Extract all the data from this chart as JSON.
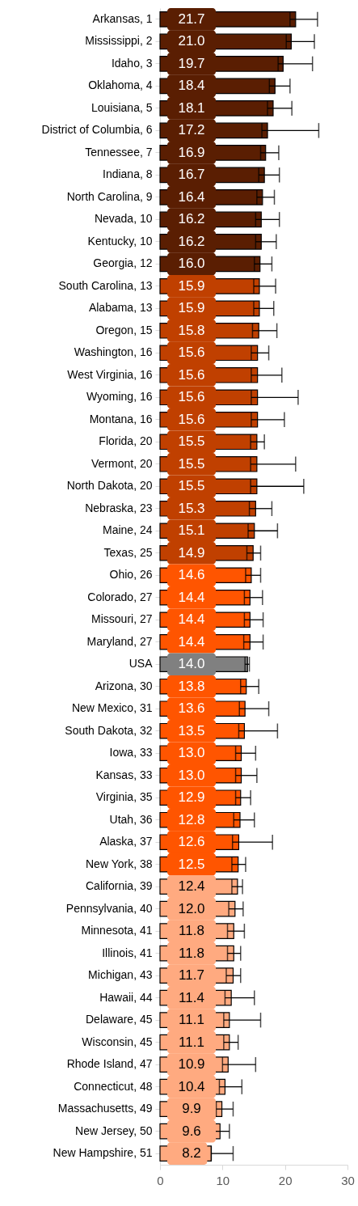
{
  "chart_data": {
    "type": "bar",
    "orientation": "horizontal",
    "categories": [
      "Arkansas, 1",
      "Mississippi, 2",
      "Idaho, 3",
      "Oklahoma, 4",
      "Louisiana, 5",
      "District of Columbia, 6",
      "Tennessee, 7",
      "Indiana, 8",
      "North Carolina, 9",
      "Nevada, 10",
      "Kentucky, 10",
      "Georgia, 12",
      "South Carolina, 13",
      "Alabama, 13",
      "Oregon, 15",
      "Washington, 16",
      "West Virginia, 16",
      "Wyoming, 16",
      "Montana, 16",
      "Florida, 20",
      "Vermont, 20",
      "North Dakota, 20",
      "Nebraska, 23",
      "Maine, 24",
      "Texas, 25",
      "Ohio, 26",
      "Colorado, 27",
      "Missouri, 27",
      "Maryland, 27",
      "USA",
      "Arizona, 30",
      "New Mexico, 31",
      "South Dakota, 32",
      "Iowa, 33",
      "Kansas, 33",
      "Virginia, 35",
      "Utah, 36",
      "Alaska, 37",
      "New York, 38",
      "California, 39",
      "Pennsylvania, 40",
      "Minnesota, 41",
      "Illinois, 41",
      "Michigan, 43",
      "Hawaii, 44",
      "Delaware, 45",
      "Wisconsin, 45",
      "Rhode Island, 47",
      "Connecticut, 48",
      "Massachusetts, 49",
      "New Jersey, 50",
      "New Hampshire, 51"
    ],
    "values": [
      21.7,
      21.0,
      19.7,
      18.4,
      18.1,
      17.2,
      16.9,
      16.7,
      16.4,
      16.2,
      16.2,
      16.0,
      15.9,
      15.9,
      15.8,
      15.6,
      15.6,
      15.6,
      15.6,
      15.5,
      15.5,
      15.5,
      15.3,
      15.1,
      14.9,
      14.6,
      14.4,
      14.4,
      14.4,
      14.0,
      13.8,
      13.6,
      13.5,
      13.0,
      13.0,
      12.9,
      12.8,
      12.6,
      12.5,
      12.4,
      12.0,
      11.8,
      11.8,
      11.7,
      11.4,
      11.1,
      11.1,
      10.9,
      10.4,
      9.9,
      9.6,
      8.2
    ],
    "colors": [
      "#5a1e02",
      "#5a1e02",
      "#5a1e02",
      "#5a1e02",
      "#5a1e02",
      "#5a1e02",
      "#5a1e02",
      "#5a1e02",
      "#5a1e02",
      "#5a1e02",
      "#5a1e02",
      "#5a1e02",
      "#c04000",
      "#c04000",
      "#c04000",
      "#c04000",
      "#c04000",
      "#c04000",
      "#c04000",
      "#c04000",
      "#c04000",
      "#c04000",
      "#c04000",
      "#c04000",
      "#c04000",
      "#ff5500",
      "#ff5500",
      "#ff5500",
      "#ff5500",
      "#808080",
      "#ff5500",
      "#ff5500",
      "#ff5500",
      "#ff5500",
      "#ff5500",
      "#ff5500",
      "#ff5500",
      "#ff5500",
      "#ff5500",
      "#ffaa80",
      "#ffaa80",
      "#ffaa80",
      "#ffaa80",
      "#ffaa80",
      "#ffaa80",
      "#ffaa80",
      "#ffaa80",
      "#ffaa80",
      "#ffaa80",
      "#ffaa80",
      "#ffaa80",
      "#ffaa80"
    ],
    "errors": [
      [
        20.8,
        25.2
      ],
      [
        20.2,
        24.7
      ],
      [
        18.9,
        24.4
      ],
      [
        17.5,
        20.8
      ],
      [
        17.2,
        21.1
      ],
      [
        16.3,
        25.4
      ],
      [
        16.1,
        19.0
      ],
      [
        15.8,
        19.1
      ],
      [
        15.5,
        18.3
      ],
      [
        15.3,
        19.1
      ],
      [
        15.3,
        18.6
      ],
      [
        15.1,
        17.9
      ],
      [
        15.0,
        18.5
      ],
      [
        15.0,
        18.2
      ],
      [
        14.8,
        18.7
      ],
      [
        14.6,
        17.4
      ],
      [
        14.6,
        19.5
      ],
      [
        14.6,
        22.1
      ],
      [
        14.6,
        19.9
      ],
      [
        14.5,
        16.7
      ],
      [
        14.5,
        21.7
      ],
      [
        14.5,
        23.0
      ],
      [
        14.3,
        17.9
      ],
      [
        14.1,
        18.8
      ],
      [
        13.9,
        16.1
      ],
      [
        13.7,
        16.1
      ],
      [
        13.5,
        16.4
      ],
      [
        13.5,
        16.5
      ],
      [
        13.4,
        16.5
      ],
      [
        13.6,
        14.3
      ],
      [
        12.9,
        15.8
      ],
      [
        12.7,
        17.4
      ],
      [
        12.6,
        18.8
      ],
      [
        12.1,
        15.3
      ],
      [
        12.1,
        15.5
      ],
      [
        12.1,
        14.5
      ],
      [
        11.8,
        15.1
      ],
      [
        11.6,
        18.0
      ],
      [
        11.5,
        13.7
      ],
      [
        11.5,
        13.2
      ],
      [
        11.0,
        13.3
      ],
      [
        10.8,
        13.5
      ],
      [
        10.8,
        12.9
      ],
      [
        10.6,
        12.9
      ],
      [
        10.4,
        15.1
      ],
      [
        10.2,
        16.1
      ],
      [
        10.2,
        12.5
      ],
      [
        10.0,
        15.3
      ],
      [
        9.5,
        13.1
      ],
      [
        9.0,
        11.7
      ],
      [
        8.7,
        11.1
      ],
      [
        8.2,
        11.7
      ]
    ],
    "value_labels": [
      "21.7",
      "21.0",
      "19.7",
      "18.4",
      "18.1",
      "17.2",
      "16.9",
      "16.7",
      "16.4",
      "16.2",
      "16.2",
      "16.0",
      "15.9",
      "15.9",
      "15.8",
      "15.6",
      "15.6",
      "15.6",
      "15.6",
      "15.5",
      "15.5",
      "15.5",
      "15.3",
      "15.1",
      "14.9",
      "14.6",
      "14.4",
      "14.4",
      "14.4",
      "14.0",
      "13.8",
      "13.6",
      "13.5",
      "13.0",
      "13.0",
      "12.9",
      "12.8",
      "12.6",
      "12.5",
      "12.4",
      "12.0",
      "11.8",
      "11.8",
      "11.7",
      "11.4",
      "11.1",
      "11.1",
      "10.9",
      "10.4",
      "9.9",
      "9.6",
      "8.2"
    ],
    "xlim": [
      0,
      30
    ],
    "xticks": [
      0,
      10,
      20,
      30
    ]
  }
}
